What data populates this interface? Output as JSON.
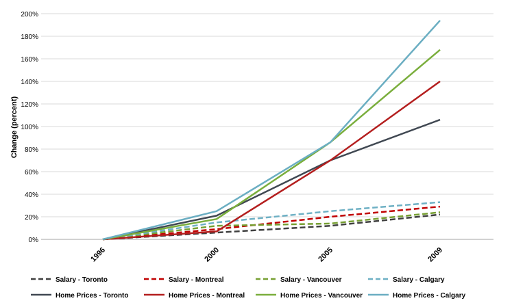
{
  "chart_data": {
    "type": "line",
    "title": "",
    "xlabel": "",
    "ylabel": "Change (percent)",
    "x": [
      "1996",
      "2000",
      "2005",
      "2009"
    ],
    "ylim": [
      0,
      200
    ],
    "ytick_step": 20,
    "ytick_suffix": "%",
    "grid": "horizontal",
    "legend_position": "bottom",
    "series": [
      {
        "name": "Salary - Toronto",
        "values": [
          0,
          6,
          12,
          22
        ],
        "color": "#404040",
        "style": "dashed"
      },
      {
        "name": "Salary - Montreal",
        "values": [
          0,
          9,
          20,
          29
        ],
        "color": "#C00000",
        "style": "dashed"
      },
      {
        "name": "Salary - Vancouver",
        "values": [
          0,
          12,
          14,
          24
        ],
        "color": "#77A033",
        "style": "dashed"
      },
      {
        "name": "Salary - Calgary",
        "values": [
          0,
          15,
          25,
          33
        ],
        "color": "#6EB0C4",
        "style": "dashed"
      },
      {
        "name": "Home Prices - Toronto",
        "values": [
          0,
          21,
          70,
          106
        ],
        "color": "#404852",
        "style": "solid"
      },
      {
        "name": "Home Prices - Montreal",
        "values": [
          0,
          7,
          70,
          140
        ],
        "color": "#B41E1E",
        "style": "solid"
      },
      {
        "name": "Home Prices - Vancouver",
        "values": [
          0,
          18,
          86,
          168
        ],
        "color": "#7AAE3C",
        "style": "solid"
      },
      {
        "name": "Home Prices - Calgary",
        "values": [
          0,
          25,
          86,
          194
        ],
        "color": "#6BAEC2",
        "style": "solid"
      }
    ]
  }
}
